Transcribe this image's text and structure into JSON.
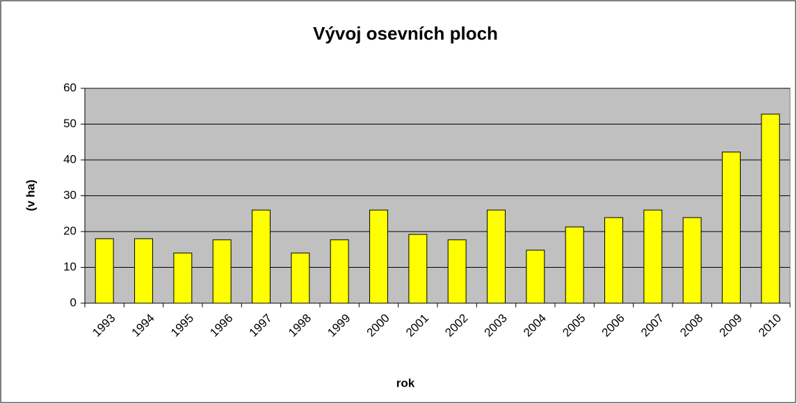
{
  "chart_data": {
    "type": "bar",
    "title": "Vývoj osevních ploch",
    "x_label": "rok",
    "y_label": "(v ha)",
    "categories": [
      "1993",
      "1994",
      "1995",
      "1996",
      "1997",
      "1998",
      "1999",
      "2000",
      "2001",
      "2002",
      "2003",
      "2004",
      "2005",
      "2006",
      "2007",
      "2008",
      "2009",
      "2010"
    ],
    "values": [
      18,
      18,
      14,
      17.7,
      26,
      14,
      17.7,
      26,
      19.2,
      17.7,
      26,
      14.8,
      21.3,
      23.9,
      26,
      23.9,
      42.2,
      52.8
    ],
    "color": "#ffff00",
    "ylim": [
      0,
      60
    ],
    "yticks": [
      0,
      10,
      20,
      30,
      40,
      50,
      60
    ],
    "grid": true
  }
}
